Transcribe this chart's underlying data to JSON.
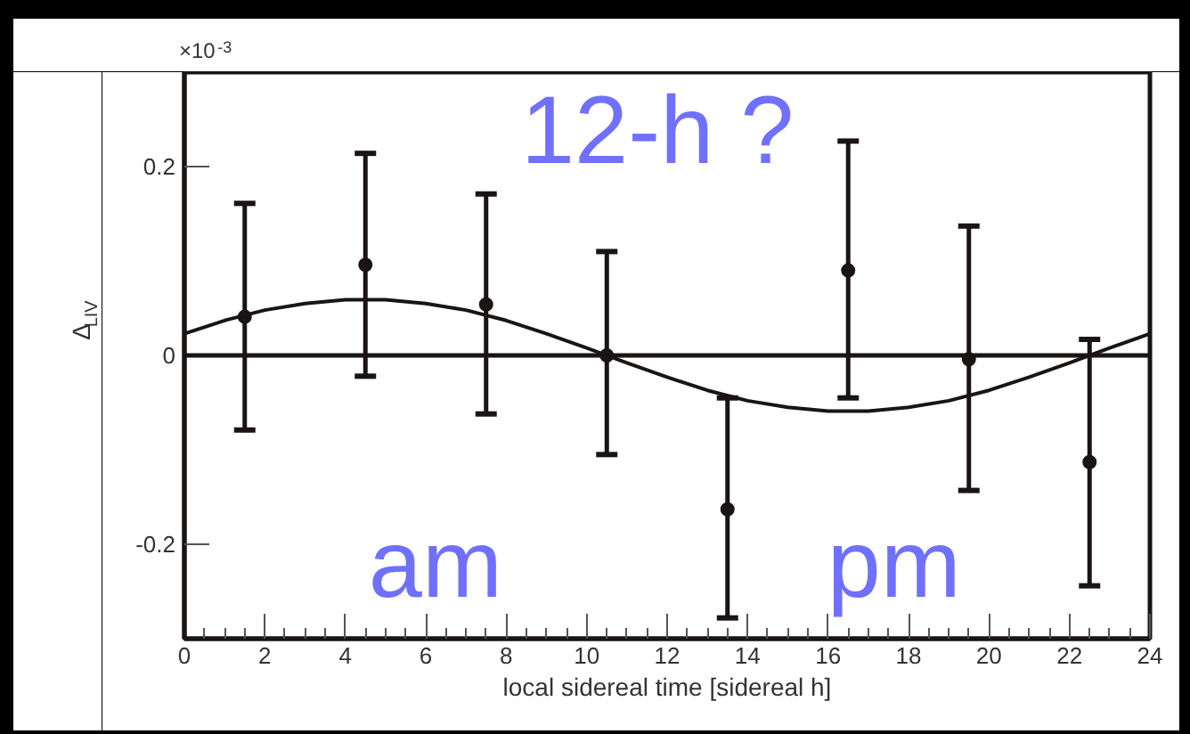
{
  "chart_data": {
    "type": "scatter",
    "xlabel": "local sidereal time [sidereal h]",
    "ylabel": "Δ$_{LIV}$",
    "annotations": [
      "×10$^{-3}$",
      "12-h ?",
      "am",
      "pm"
    ],
    "xlim": [
      0,
      24
    ],
    "xticks": [
      0,
      2,
      4,
      6,
      8,
      10,
      12,
      14,
      16,
      18,
      20,
      22,
      24
    ],
    "ylim": [
      -0.3,
      0.3
    ],
    "yticks": [
      -0.2,
      0,
      0.2
    ],
    "grid": false,
    "marker": "circle",
    "ref_lines": [
      {
        "axis": "y",
        "value": 0,
        "color": "#1a1414"
      }
    ],
    "series": [
      {
        "type": "scatter",
        "color": "#1a1414",
        "x": [
          1.5,
          4.5,
          7.5,
          10.5,
          13.5,
          16.5,
          19.5,
          22.5
        ],
        "values": [
          0.041,
          0.096,
          0.054,
          0.0,
          -0.163,
          0.09,
          -0.004,
          -0.113
        ],
        "errors": [
          [
            -0.079,
            0.161
          ],
          [
            -0.022,
            0.214
          ],
          [
            -0.062,
            0.171
          ],
          [
            -0.105,
            0.11
          ],
          [
            -0.278,
            -0.045
          ],
          [
            -0.045,
            0.227
          ],
          [
            -0.143,
            0.137
          ],
          [
            -0.244,
            0.017
          ]
        ]
      },
      {
        "type": "line",
        "color": "#1a1414",
        "marker": "none",
        "x": [
          0,
          1,
          2,
          3,
          4,
          5,
          6,
          7,
          8,
          9,
          10,
          11,
          12,
          13,
          14,
          15,
          16,
          17,
          18,
          19,
          20,
          21,
          22,
          23,
          24
        ],
        "values": [
          0.023,
          0.037,
          0.048,
          0.055,
          0.059,
          0.059,
          0.055,
          0.048,
          0.037,
          0.023,
          0.008,
          -0.008,
          -0.023,
          -0.037,
          -0.048,
          -0.055,
          -0.059,
          -0.059,
          -0.055,
          -0.048,
          -0.037,
          -0.023,
          -0.008,
          0.008,
          0.023
        ]
      }
    ]
  }
}
